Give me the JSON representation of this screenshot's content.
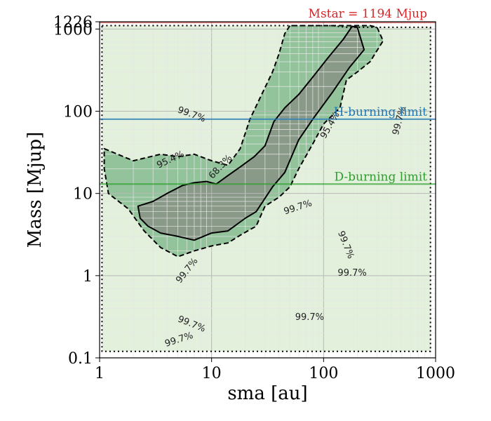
{
  "chart_data": {
    "type": "contour",
    "x_scale": "log",
    "y_scale": "log",
    "xlim": [
      1,
      1000
    ],
    "ylim": [
      0.1,
      1226
    ],
    "xlabel": "sma [au]",
    "ylabel": "Mass [Mjup]",
    "x_ticks": [
      {
        "value": 1,
        "label": "1"
      },
      {
        "value": 10,
        "label": "10"
      },
      {
        "value": 100,
        "label": "100"
      },
      {
        "value": 1000,
        "label": "1000"
      }
    ],
    "y_ticks": [
      {
        "value": 0.1,
        "label": "0.1"
      },
      {
        "value": 1,
        "label": "1"
      },
      {
        "value": 10,
        "label": "10"
      },
      {
        "value": 100,
        "label": "100"
      },
      {
        "value": 1000,
        "label": "1000"
      },
      {
        "value": 1226,
        "label": "1226"
      }
    ],
    "grid": true,
    "colors": {
      "level_997": "#e3f0dc",
      "level_954": "#92c39b",
      "level_683": "#8a9a88",
      "h_line": "#1f77b4",
      "d_line": "#2ca02c",
      "mstar": "#d62728"
    },
    "contours": [
      {
        "level": "68.3%",
        "style": "solid",
        "points": [
          [
            2.2,
            7.0
          ],
          [
            3.0,
            8.0
          ],
          [
            4.0,
            10.0
          ],
          [
            5.5,
            12.5
          ],
          [
            7.0,
            13.5
          ],
          [
            9.0,
            14.0
          ],
          [
            11.0,
            13.0
          ],
          [
            14.0,
            16.5
          ],
          [
            18.0,
            21.0
          ],
          [
            24.0,
            28.0
          ],
          [
            30.0,
            38.0
          ],
          [
            36.0,
            75.0
          ],
          [
            45.0,
            110.0
          ],
          [
            60.0,
            160.0
          ],
          [
            80.0,
            260.0
          ],
          [
            110.0,
            450.0
          ],
          [
            150.0,
            750.0
          ],
          [
            180.0,
            1080.0
          ],
          [
            200.0,
            1050.0
          ],
          [
            230.0,
            560.0
          ],
          [
            170.0,
            340.0
          ],
          [
            120.0,
            170.0
          ],
          [
            80.0,
            80.0
          ],
          [
            60.0,
            45.0
          ],
          [
            45.0,
            18.0
          ],
          [
            35.0,
            12.0
          ],
          [
            25.0,
            6.0
          ],
          [
            20.0,
            5.0
          ],
          [
            14.0,
            3.5
          ],
          [
            10.0,
            3.3
          ],
          [
            7.0,
            2.7
          ],
          [
            5.0,
            3.0
          ],
          [
            3.5,
            3.3
          ],
          [
            2.7,
            4.0
          ],
          [
            2.3,
            5.0
          ]
        ]
      },
      {
        "level": "95.4%",
        "style": "dashed",
        "points": [
          [
            1.1,
            35.0
          ],
          [
            2.0,
            25.0
          ],
          [
            3.5,
            30.0
          ],
          [
            5.0,
            28.0
          ],
          [
            7.0,
            30.0
          ],
          [
            10.0,
            25.0
          ],
          [
            14.0,
            22.0
          ],
          [
            18.0,
            35.0
          ],
          [
            22.0,
            80.0
          ],
          [
            28.0,
            160.0
          ],
          [
            35.0,
            300.0
          ],
          [
            40.0,
            500.0
          ],
          [
            45.0,
            880.0
          ],
          [
            50.0,
            1100.0
          ],
          [
            260.0,
            1100.0
          ],
          [
            300.0,
            1050.0
          ],
          [
            340.0,
            720.0
          ],
          [
            260.0,
            400.0
          ],
          [
            200.0,
            300.0
          ],
          [
            160.0,
            240.0
          ],
          [
            140.0,
            110.0
          ],
          [
            100.0,
            70.0
          ],
          [
            80.0,
            40.0
          ],
          [
            60.0,
            20.0
          ],
          [
            50.0,
            12.0
          ],
          [
            40.0,
            9.0
          ],
          [
            30.0,
            7.0
          ],
          [
            25.0,
            4.0
          ],
          [
            18.0,
            3.1
          ],
          [
            14.0,
            2.5
          ],
          [
            10.0,
            2.3
          ],
          [
            7.0,
            2.0
          ],
          [
            5.0,
            1.7
          ],
          [
            3.5,
            2.2
          ],
          [
            2.5,
            3.5
          ],
          [
            1.8,
            6.5
          ],
          [
            1.2,
            10.0
          ],
          [
            1.1,
            20.0
          ]
        ]
      },
      {
        "level": "99.7%",
        "style": "dotted",
        "points": [
          [
            1.05,
            1100.0
          ],
          [
            120.0,
            1100.0
          ],
          [
            160.0,
            1050.0
          ],
          [
            400.0,
            1050.0
          ],
          [
            900.0,
            1050.0
          ],
          [
            900.0,
            0.12
          ],
          [
            1.05,
            0.12
          ]
        ]
      }
    ],
    "contour_labels": [
      {
        "text": "68.3%",
        "x": 12.5,
        "y": 20.0,
        "rotation": -47
      },
      {
        "text": "95.4%",
        "x": 4.4,
        "y": 24.0,
        "rotation": -25
      },
      {
        "text": "95.4%",
        "x": 120.0,
        "y": 65.0,
        "rotation": -60
      },
      {
        "text": "99.7%",
        "x": 6.5,
        "y": 85.0,
        "rotation": 20
      },
      {
        "text": "99.7%",
        "x": 60.0,
        "y": 6.3,
        "rotation": -18
      },
      {
        "text": "99.7%",
        "x": 150.0,
        "y": 2.3,
        "rotation": 68
      },
      {
        "text": "99.7%",
        "x": 180.0,
        "y": 1.0,
        "rotation": 0
      },
      {
        "text": "99.7%",
        "x": 6.3,
        "y": 1.1,
        "rotation": -52
      },
      {
        "text": "99.7%",
        "x": 6.5,
        "y": 0.24,
        "rotation": 22
      },
      {
        "text": "99.7%",
        "x": 5.2,
        "y": 0.155,
        "rotation": -18
      },
      {
        "text": "99.7%",
        "x": 75.0,
        "y": 0.29,
        "rotation": 0
      },
      {
        "text": "99.7%",
        "x": 500.0,
        "y": 75.0,
        "rotation": -75
      }
    ],
    "hlines": [
      {
        "name": "H-burning limit",
        "value": 80,
        "color": "#1f77b4"
      },
      {
        "name": "D-burning limit",
        "value": 13,
        "color": "#2ca02c"
      }
    ],
    "mstar": {
      "text": "Mstar = 1194 Mjup",
      "value": 1194,
      "color": "#d62728"
    }
  }
}
